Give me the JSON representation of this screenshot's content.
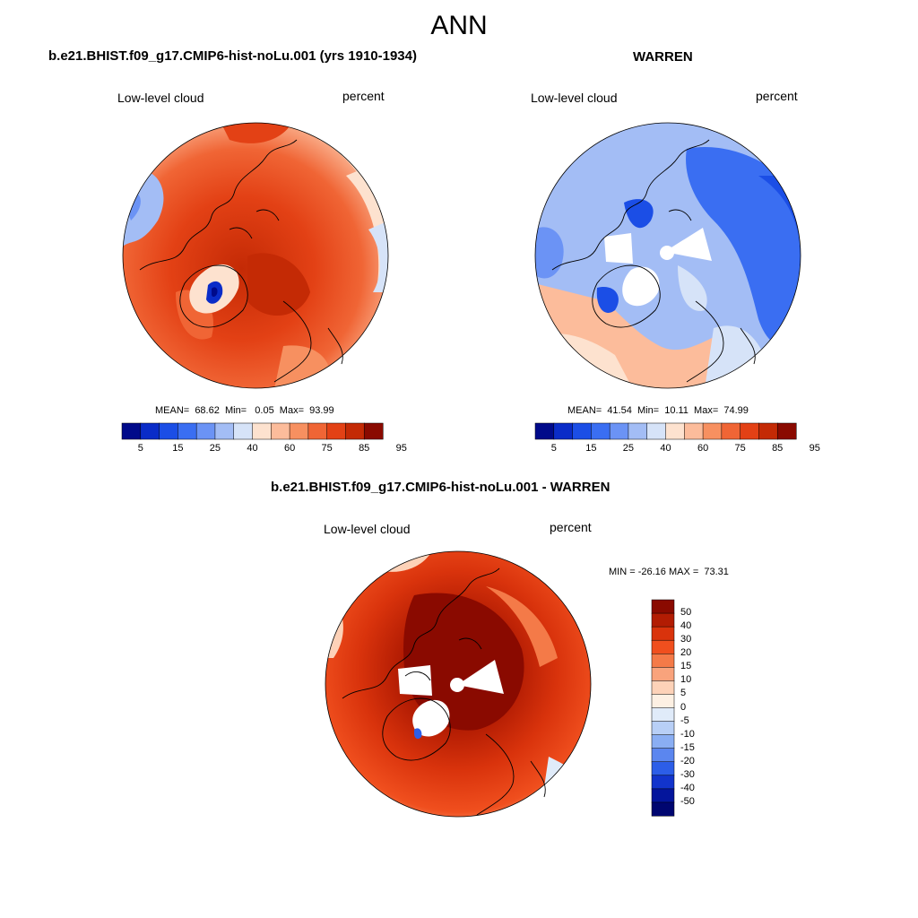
{
  "title": "ANN",
  "panels": [
    {
      "title": "b.e21.BHIST.f09_g17.CMIP6-hist-noLu.001 (yrs 1910-1934)",
      "left_label": "Low-level cloud",
      "right_label": "percent",
      "stats": "MEAN=  68.62  Min=   0.05  Max=  93.99"
    },
    {
      "title": "WARREN",
      "left_label": "Low-level cloud",
      "right_label": "percent",
      "stats": "MEAN=  41.54  Min=  10.11  Max=  74.99"
    }
  ],
  "diff_panel": {
    "title": "b.e21.BHIST.f09_g17.CMIP6-hist-noLu.001 - WARREN",
    "left_label": "Low-level cloud",
    "right_label": "percent",
    "stats": "MIN = -26.16 MAX =  73.31"
  },
  "colorbar_levels": [
    "5",
    "15",
    "25",
    "40",
    "60",
    "75",
    "85",
    "95"
  ],
  "colorbar_colors": [
    "#000a8a",
    "#0a2cc8",
    "#1b4ee6",
    "#3a6ef2",
    "#6b93f5",
    "#a3bdf5",
    "#d6e3f8",
    "#fde2cf",
    "#fcbc9b",
    "#f79060",
    "#f06535",
    "#e34115",
    "#c42a05",
    "#8a0a00"
  ],
  "diff_levels": [
    "50",
    "40",
    "30",
    "20",
    "15",
    "10",
    "5",
    "0",
    "-5",
    "-10",
    "-15",
    "-20",
    "-30",
    "-40",
    "-50"
  ],
  "diff_colors": [
    "#8a0a00",
    "#b21c03",
    "#d9330c",
    "#f04f1e",
    "#f47a48",
    "#f9a37c",
    "#fdd2b8",
    "#fdf0e3",
    "#e0ebf9",
    "#b8cff6",
    "#8aaef3",
    "#5b86ef",
    "#2c5ee8",
    "#1234cc",
    "#04159c",
    "#000670"
  ]
}
